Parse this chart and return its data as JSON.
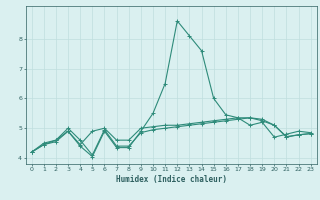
{
  "xlabel": "Humidex (Indice chaleur)",
  "x": [
    0,
    1,
    2,
    3,
    4,
    5,
    6,
    7,
    8,
    9,
    10,
    11,
    12,
    13,
    14,
    15,
    16,
    17,
    18,
    19,
    20,
    21,
    22,
    23
  ],
  "line1": [
    4.2,
    4.5,
    4.6,
    4.9,
    4.4,
    4.05,
    4.9,
    4.35,
    4.35,
    4.9,
    5.5,
    6.5,
    8.6,
    8.1,
    7.6,
    6.0,
    5.45,
    5.35,
    5.1,
    5.2,
    4.7,
    4.8,
    4.9,
    4.85
  ],
  "line2": [
    4.2,
    4.45,
    4.55,
    4.9,
    4.45,
    4.9,
    5.0,
    4.6,
    4.6,
    5.0,
    5.05,
    5.1,
    5.1,
    5.15,
    5.2,
    5.25,
    5.3,
    5.35,
    5.35,
    5.3,
    5.1,
    4.72,
    4.78,
    4.82
  ],
  "line3": [
    4.2,
    4.45,
    4.6,
    5.0,
    4.6,
    4.1,
    4.95,
    4.4,
    4.4,
    4.85,
    4.95,
    5.0,
    5.05,
    5.1,
    5.15,
    5.2,
    5.25,
    5.3,
    5.35,
    5.25,
    5.1,
    4.7,
    4.78,
    4.82
  ],
  "line_color": "#2e8b7a",
  "bg_color": "#daf0f0",
  "grid_major_color": "#c0dede",
  "grid_minor_color": "#c0dede",
  "text_color": "#2e6060",
  "axis_color": "#2e6060",
  "ylim": [
    3.8,
    9.1
  ],
  "xlim": [
    -0.5,
    23.5
  ],
  "yticks": [
    4,
    5,
    6,
    7,
    8
  ],
  "xticks": [
    0,
    1,
    2,
    3,
    4,
    5,
    6,
    7,
    8,
    9,
    10,
    11,
    12,
    13,
    14,
    15,
    16,
    17,
    18,
    19,
    20,
    21,
    22,
    23
  ]
}
